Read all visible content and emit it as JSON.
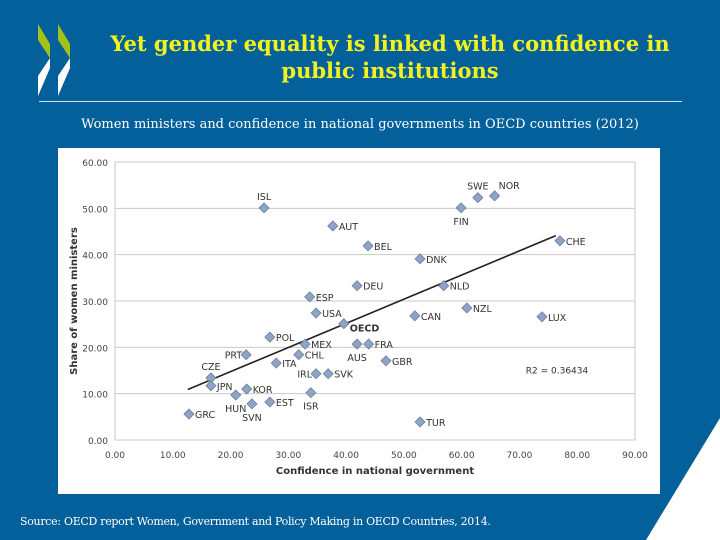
{
  "slide": {
    "title_line1": "Yet gender equality is linked with confidence in",
    "title_line2": "public institutions",
    "subtitle": "Women ministers and confidence in national governments in OECD countries (2012)",
    "source": "Source: OECD report Women, Government and Policy Making in OECD Countries, 2014.",
    "colors": {
      "background": "#04609a",
      "title": "#f2f21e",
      "logo_green": "#a4c11a",
      "marker": "#8fa3c4"
    }
  },
  "chart_data": {
    "type": "scatter",
    "xlabel": "Confidence in national government",
    "ylabel": "Share of women ministers",
    "xlim": [
      0,
      90
    ],
    "ylim": [
      0,
      60
    ],
    "xticks": [
      "0.00",
      "10.00",
      "20.00",
      "30.00",
      "40.00",
      "50.00",
      "60.00",
      "70.00",
      "80.00",
      "90.00"
    ],
    "yticks": [
      "0.00",
      "10.00",
      "20.00",
      "30.00",
      "40.00",
      "50.00",
      "60.00"
    ],
    "grid": "horizontal",
    "annotation": "R2 = 0.36434",
    "trendline": {
      "x": [
        12.6,
        76.3
      ],
      "y": [
        10.9,
        44.1
      ]
    },
    "points": [
      {
        "label": "ISL",
        "x": 25.8,
        "y": 50.1
      },
      {
        "label": "AUT",
        "x": 37.7,
        "y": 46.2
      },
      {
        "label": "BEL",
        "x": 43.8,
        "y": 41.9
      },
      {
        "label": "DEU",
        "x": 41.9,
        "y": 33.3
      },
      {
        "label": "ESP",
        "x": 33.7,
        "y": 30.9
      },
      {
        "label": "USA",
        "x": 34.8,
        "y": 27.4
      },
      {
        "label": "OECD",
        "x": 39.6,
        "y": 25.1
      },
      {
        "label": "POL",
        "x": 26.8,
        "y": 22.2
      },
      {
        "label": "MEX",
        "x": 32.9,
        "y": 20.7
      },
      {
        "label": "FRA",
        "x": 43.9,
        "y": 20.7
      },
      {
        "label": "AUS",
        "x": 41.9,
        "y": 20.7
      },
      {
        "label": "CHL",
        "x": 31.8,
        "y": 18.4
      },
      {
        "label": "PRT",
        "x": 22.7,
        "y": 18.4
      },
      {
        "label": "ITA",
        "x": 27.9,
        "y": 16.6
      },
      {
        "label": "IRL",
        "x": 34.8,
        "y": 14.3
      },
      {
        "label": "SVK",
        "x": 36.9,
        "y": 14.3
      },
      {
        "label": "GBR",
        "x": 46.9,
        "y": 17.1
      },
      {
        "label": "CZE",
        "x": 16.6,
        "y": 13.4
      },
      {
        "label": "JPN",
        "x": 16.6,
        "y": 11.7
      },
      {
        "label": "HUN",
        "x": 20.9,
        "y": 9.7
      },
      {
        "label": "KOR",
        "x": 22.8,
        "y": 11.0
      },
      {
        "label": "SVN",
        "x": 23.7,
        "y": 7.8
      },
      {
        "label": "EST",
        "x": 26.8,
        "y": 8.2
      },
      {
        "label": "ISR",
        "x": 33.9,
        "y": 10.2
      },
      {
        "label": "GRC",
        "x": 12.8,
        "y": 5.6
      },
      {
        "label": "SWE",
        "x": 62.8,
        "y": 52.3
      },
      {
        "label": "NOR",
        "x": 65.7,
        "y": 52.7
      },
      {
        "label": "FIN",
        "x": 59.9,
        "y": 50.1
      },
      {
        "label": "CHE",
        "x": 77.0,
        "y": 43.0
      },
      {
        "label": "DNK",
        "x": 52.8,
        "y": 39.1
      },
      {
        "label": "NLD",
        "x": 56.9,
        "y": 33.3
      },
      {
        "label": "NZL",
        "x": 60.9,
        "y": 28.5
      },
      {
        "label": "CAN",
        "x": 51.9,
        "y": 26.8
      },
      {
        "label": "LUX",
        "x": 73.9,
        "y": 26.6
      },
      {
        "label": "TUR",
        "x": 52.8,
        "y": 3.9
      }
    ]
  }
}
